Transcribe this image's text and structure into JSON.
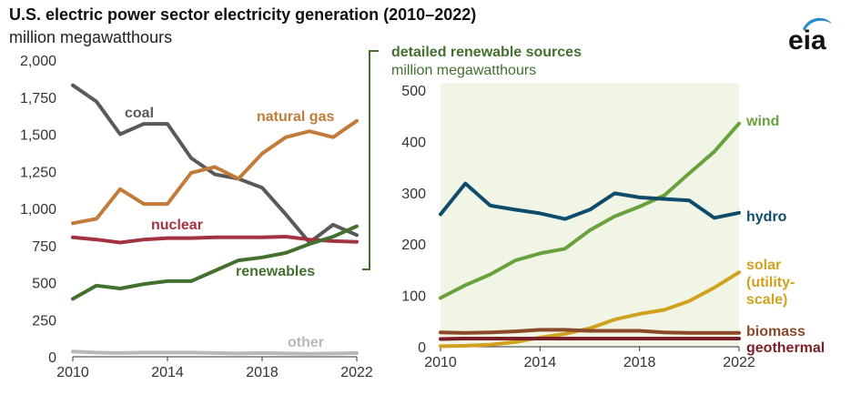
{
  "title": "U.S. electric power sector electricity generation (2010–2022)",
  "units": "million megawatthours",
  "logo_text": "eia",
  "colors": {
    "coal": "#595959",
    "natural_gas": "#c37b3a",
    "nuclear": "#a33340",
    "renewables": "#44702f",
    "other": "#b8b8b8",
    "wind": "#69a13c",
    "hydro": "#0f4b6b",
    "solar": "#d1a21f",
    "biomass": "#8a4a2a",
    "geothermal": "#7a1f27",
    "panel_bg": "#f0f5e6",
    "connector": "#44702f",
    "logo_blue": "#2a8bc9"
  },
  "chart_data": [
    {
      "type": "line",
      "title": "U.S. electric power sector electricity generation (2010–2022)",
      "ylabel": "million megawatthours",
      "x": [
        2010,
        2011,
        2012,
        2013,
        2014,
        2015,
        2016,
        2017,
        2018,
        2019,
        2020,
        2021,
        2022
      ],
      "xticks": [
        "2010",
        "2014",
        "2018",
        "2022"
      ],
      "yticks": [
        "0",
        "250",
        "500",
        "750",
        "1,000",
        "1,250",
        "1,500",
        "1,750",
        "2,000"
      ],
      "ylim": [
        0,
        2000
      ],
      "grid": false,
      "series": [
        {
          "name": "coal",
          "key": "coal",
          "values": [
            1830,
            1720,
            1500,
            1570,
            1570,
            1340,
            1230,
            1200,
            1140,
            960,
            770,
            890,
            820
          ]
        },
        {
          "name": "natural gas",
          "key": "natural_gas",
          "values": [
            900,
            930,
            1130,
            1030,
            1030,
            1240,
            1280,
            1200,
            1370,
            1480,
            1520,
            1480,
            1590
          ]
        },
        {
          "name": "nuclear",
          "key": "nuclear",
          "values": [
            805,
            790,
            770,
            790,
            800,
            800,
            805,
            805,
            805,
            810,
            790,
            780,
            775
          ]
        },
        {
          "name": "renewables",
          "key": "renewables",
          "values": [
            390,
            480,
            460,
            490,
            510,
            510,
            580,
            650,
            670,
            700,
            760,
            810,
            880
          ]
        },
        {
          "name": "other",
          "key": "other",
          "values": [
            35,
            28,
            25,
            28,
            28,
            28,
            25,
            22,
            25,
            22,
            20,
            22,
            25
          ]
        }
      ]
    },
    {
      "type": "line",
      "title": "detailed renewable sources",
      "ylabel": "million megawatthours",
      "x": [
        2010,
        2011,
        2012,
        2013,
        2014,
        2015,
        2016,
        2017,
        2018,
        2019,
        2020,
        2021,
        2022
      ],
      "xticks": [
        "2010",
        "2014",
        "2018",
        "2022"
      ],
      "yticks": [
        "0",
        "100",
        "200",
        "300",
        "400",
        "500"
      ],
      "ylim": [
        0,
        500
      ],
      "grid": false,
      "series": [
        {
          "name": "wind",
          "key": "wind",
          "values": [
            95,
            120,
            141,
            168,
            182,
            191,
            227,
            254,
            273,
            295,
            338,
            380,
            435
          ]
        },
        {
          "name": "hydro",
          "key": "hydro",
          "values": [
            258,
            318,
            275,
            267,
            260,
            249,
            267,
            299,
            291,
            288,
            285,
            251,
            261
          ]
        },
        {
          "name": "solar (utility-scale)",
          "key": "solar",
          "values": [
            1,
            2,
            4,
            9,
            18,
            25,
            36,
            53,
            64,
            72,
            89,
            115,
            145
          ]
        },
        {
          "name": "biomass",
          "key": "biomass",
          "values": [
            28,
            27,
            28,
            30,
            33,
            33,
            31,
            31,
            31,
            28,
            27,
            27,
            27
          ]
        },
        {
          "name": "geothermal",
          "key": "geothermal",
          "values": [
            15,
            16,
            16,
            16,
            16,
            16,
            16,
            16,
            16,
            16,
            16,
            16,
            16
          ]
        }
      ]
    }
  ],
  "labels": {
    "coal": "coal",
    "natural_gas": "natural gas",
    "nuclear": "nuclear",
    "renewables": "renewables",
    "other": "other",
    "detail_title": "detailed renewable sources",
    "detail_units": "million megawatthours",
    "wind": "wind",
    "hydro": "hydro",
    "solar_1": "solar",
    "solar_2": "(utility-",
    "solar_3": "scale)",
    "biomass": "biomass",
    "geothermal": "geothermal"
  }
}
